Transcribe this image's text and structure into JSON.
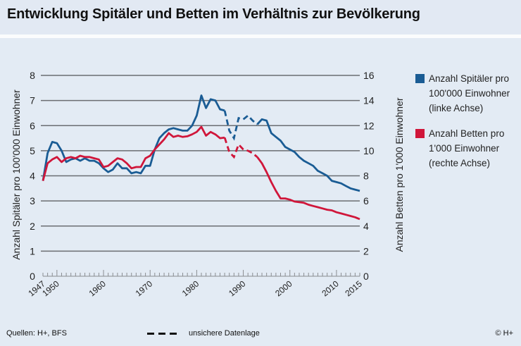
{
  "header": {
    "title": "Entwicklung Spitäler und Betten im Verhältnis zur Bevölkerung"
  },
  "legend": {
    "items": [
      {
        "label": "Anzahl Spitäler pro 100'000 Einwohner (linke Achse)",
        "lines": [
          "Anzahl Spitäler pro",
          "100'000 Einwohner",
          "(linke Achse)"
        ],
        "color": "#1a5c94"
      },
      {
        "label": "Anzahl Betten pro 1'000 Einwohner (rechte Achse)",
        "lines": [
          "Anzahl Betten pro",
          "1'000 Einwohner",
          "(rechte Achse)"
        ],
        "color": "#d0163a"
      }
    ]
  },
  "footer": {
    "source": "Quellen: H+, BFS",
    "uncertain_label": "unsichere Datenlage",
    "copyright": "© H+"
  },
  "chart_data": {
    "type": "line",
    "title": "Entwicklung Spitäler und Betten im Verhältnis zur Bevölkerung",
    "xlabel": "",
    "ylabel": "Anzahl Spitäler pro 100'000 Einwohner",
    "y2label": "Anzahl Betten pro 1'000 Einwohner",
    "xlim": [
      1947,
      2015
    ],
    "ylim": [
      0,
      8
    ],
    "y2lim": [
      0,
      16
    ],
    "yticks": [
      0,
      1,
      2,
      3,
      4,
      5,
      6,
      7,
      8
    ],
    "y2ticks": [
      0,
      2,
      4,
      6,
      8,
      10,
      12,
      14,
      16
    ],
    "xtick_labels": [
      "1947",
      "1950",
      "1960",
      "1970",
      "1980",
      "1990",
      "2000",
      "2010",
      "2015"
    ],
    "xticks": [
      1947,
      1950,
      1960,
      1970,
      1980,
      1990,
      2000,
      2010,
      2015
    ],
    "grid": true,
    "legend_position": "right",
    "uncertain_range": [
      1986,
      1993
    ],
    "x": [
      1947,
      1948,
      1949,
      1950,
      1951,
      1952,
      1953,
      1954,
      1955,
      1956,
      1957,
      1958,
      1959,
      1960,
      1961,
      1962,
      1963,
      1964,
      1965,
      1966,
      1967,
      1968,
      1969,
      1970,
      1971,
      1972,
      1973,
      1974,
      1975,
      1976,
      1977,
      1978,
      1979,
      1980,
      1981,
      1982,
      1983,
      1984,
      1985,
      1986,
      1987,
      1988,
      1989,
      1990,
      1991,
      1992,
      1993,
      1994,
      1995,
      1996,
      1997,
      1998,
      1999,
      2000,
      2001,
      2002,
      2003,
      2004,
      2005,
      2006,
      2007,
      2008,
      2009,
      2010,
      2011,
      2012,
      2013,
      2014,
      2015
    ],
    "series": [
      {
        "name": "Anzahl Spitäler pro 100'000 Einwohner",
        "axis": "left",
        "color": "#1a5c94",
        "values": [
          3.8,
          4.9,
          5.35,
          5.3,
          5.0,
          4.55,
          4.65,
          4.7,
          4.6,
          4.7,
          4.6,
          4.6,
          4.5,
          4.3,
          4.15,
          4.25,
          4.5,
          4.3,
          4.3,
          4.1,
          4.15,
          4.1,
          4.4,
          4.4,
          5.05,
          5.5,
          5.7,
          5.85,
          5.9,
          5.85,
          5.8,
          5.8,
          6.0,
          6.4,
          7.2,
          6.7,
          7.05,
          7.0,
          6.65,
          6.6,
          5.8,
          5.5,
          6.3,
          6.25,
          6.4,
          6.2,
          6.05,
          6.25,
          6.2,
          5.7,
          5.55,
          5.4,
          5.15,
          5.05,
          4.95,
          4.75,
          4.6,
          4.5,
          4.4,
          4.2,
          4.1,
          4.0,
          3.8,
          3.75,
          3.7,
          3.6,
          3.5,
          3.45,
          3.4
        ]
      },
      {
        "name": "Anzahl Betten pro 1'000 Einwohner",
        "axis": "right",
        "color": "#d0163a",
        "values": [
          7.6,
          9.0,
          9.3,
          9.5,
          9.1,
          9.4,
          9.5,
          9.4,
          9.6,
          9.5,
          9.5,
          9.4,
          9.3,
          8.7,
          8.8,
          9.1,
          9.4,
          9.3,
          9.0,
          8.6,
          8.7,
          8.7,
          9.4,
          9.6,
          10.1,
          10.5,
          10.9,
          11.4,
          11.1,
          11.2,
          11.1,
          11.15,
          11.3,
          11.5,
          11.9,
          11.2,
          11.5,
          11.3,
          11.0,
          11.05,
          9.9,
          9.5,
          10.5,
          10.1,
          10.0,
          9.8,
          9.5,
          9.0,
          8.3,
          7.5,
          6.8,
          6.2,
          6.2,
          6.1,
          5.95,
          5.9,
          5.85,
          5.7,
          5.6,
          5.5,
          5.4,
          5.3,
          5.25,
          5.1,
          5.0,
          4.9,
          4.8,
          4.7,
          4.55
        ]
      }
    ]
  }
}
